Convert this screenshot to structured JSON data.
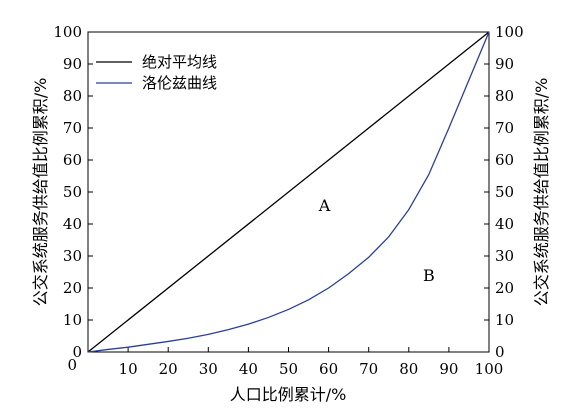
{
  "chart_data": {
    "type": "line",
    "xlabel": "人口比例累计/%",
    "ylabel_left": "公交系统服务供给值比例累积/%",
    "ylabel_right": "公交系统服务供给值比例累积/%",
    "xlim": [
      0,
      100
    ],
    "ylim": [
      0,
      100
    ],
    "x_ticks": [
      10,
      20,
      30,
      40,
      50,
      60,
      70,
      80,
      90,
      100
    ],
    "x_origin_label": "0",
    "y_ticks": [
      0,
      10,
      20,
      30,
      40,
      50,
      60,
      70,
      80,
      90,
      100
    ],
    "grid": false,
    "legend_position": "top-left",
    "series": [
      {
        "name": "绝对平均线",
        "color": "#000000",
        "x": [
          0,
          100
        ],
        "y": [
          0,
          100
        ]
      },
      {
        "name": "洛伦兹曲线",
        "color": "#2b3f99",
        "x": [
          0,
          5,
          10,
          15,
          20,
          25,
          30,
          35,
          40,
          45,
          50,
          55,
          60,
          65,
          70,
          75,
          80,
          85,
          90,
          95,
          100
        ],
        "y": [
          0,
          0.8,
          1.5,
          2.4,
          3.3,
          4.3,
          5.5,
          7.0,
          8.7,
          10.8,
          13.3,
          16.3,
          20.0,
          24.5,
          29.6,
          36.0,
          44.5,
          55.5,
          70.0,
          85.0,
          100
        ]
      }
    ],
    "annotations": [
      {
        "text": "A",
        "x": 59,
        "y": 46
      },
      {
        "text": "B",
        "x": 85,
        "y": 24
      }
    ]
  }
}
